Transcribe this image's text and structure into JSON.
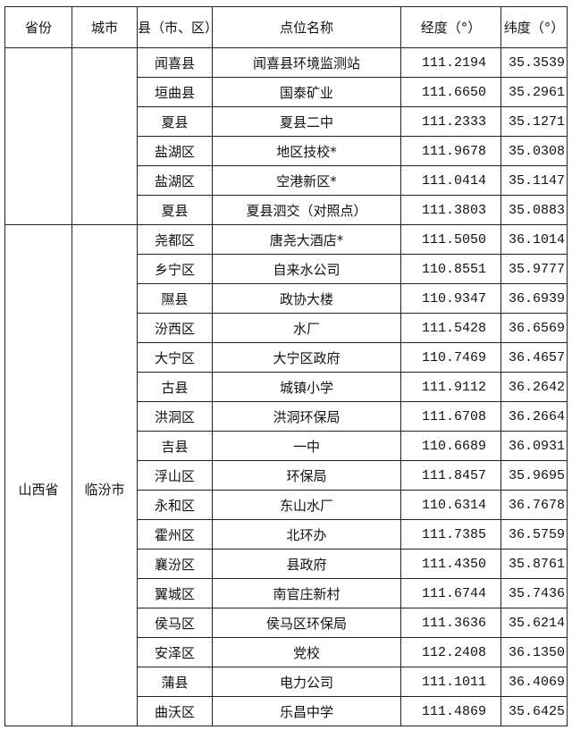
{
  "headers": [
    "省份",
    "城市",
    "县（市、区）",
    "点位名称",
    "经度（°）",
    "纬度（°）"
  ],
  "groups": [
    {
      "province": "",
      "city": "",
      "rows": [
        [
          "闻喜县",
          "闻喜县环境监测站",
          "111.2194",
          "35.3539"
        ],
        [
          "垣曲县",
          "国泰矿业",
          "111.6650",
          "35.2961"
        ],
        [
          "夏县",
          "夏县二中",
          "111.2333",
          "35.1271"
        ],
        [
          "盐湖区",
          "地区技校*",
          "111.9678",
          "35.0308"
        ],
        [
          "盐湖区",
          "空港新区*",
          "111.0414",
          "35.1147"
        ],
        [
          "夏县",
          "夏县泗交（对照点）",
          "111.3803",
          "35.0883"
        ]
      ]
    },
    {
      "province": "山西省",
      "city": "临汾市",
      "rows": [
        [
          "尧都区",
          "唐尧大酒店*",
          "111.5050",
          "36.1014"
        ],
        [
          "乡宁区",
          "自来水公司",
          "110.8551",
          "35.9777"
        ],
        [
          "隰县",
          "政协大楼",
          "110.9347",
          "36.6939"
        ],
        [
          "汾西区",
          "水厂",
          "111.5428",
          "36.6569"
        ],
        [
          "大宁区",
          "大宁区政府",
          "110.7469",
          "36.4657"
        ],
        [
          "古县",
          "城镇小学",
          "111.9112",
          "36.2642"
        ],
        [
          "洪洞区",
          "洪洞环保局",
          "111.6708",
          "36.2664"
        ],
        [
          "吉县",
          "一中",
          "110.6689",
          "36.0931"
        ],
        [
          "浮山区",
          "环保局",
          "111.8457",
          "35.9695"
        ],
        [
          "永和区",
          "东山水厂",
          "110.6314",
          "36.7678"
        ],
        [
          "霍州区",
          "北环办",
          "111.7385",
          "36.5759"
        ],
        [
          "襄汾区",
          "县政府",
          "111.4350",
          "35.8761"
        ],
        [
          "翼城区",
          "南官庄新村",
          "111.6744",
          "35.7436"
        ],
        [
          "侯马区",
          "侯马区环保局",
          "111.3636",
          "35.6214"
        ],
        [
          "安泽区",
          "党校",
          "112.2408",
          "36.1350"
        ],
        [
          "蒲县",
          "电力公司",
          "111.1011",
          "36.4069"
        ],
        [
          "曲沃区",
          "乐昌中学",
          "111.4869",
          "35.6425"
        ]
      ]
    }
  ]
}
